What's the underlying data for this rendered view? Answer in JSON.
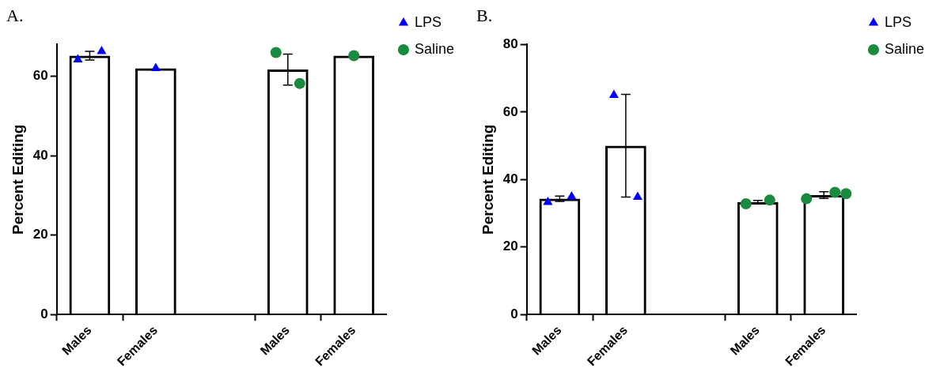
{
  "chart_data": [
    {
      "type": "bar",
      "title": "A.",
      "ylabel": "Percent Editing",
      "categories": [
        "Males",
        "Females",
        null,
        "Males",
        "Females"
      ],
      "ylim": [
        0,
        68
      ],
      "yticks": [
        0,
        20,
        40,
        60
      ],
      "grid": false,
      "legend": "top right",
      "series": [
        {
          "color": "#000000",
          "values": [
            65.2,
            62.0,
            null,
            61.7,
            65.2
          ],
          "errors": [
            1.1,
            null,
            null,
            3.9,
            null
          ]
        },
        {
          "type": "scatter",
          "name": "LPS",
          "color": "#0000ff",
          "marker": "triangle",
          "values": [
            64.2,
            62.0,
            null,
            null,
            null
          ]
        },
        {
          "type": "scatter",
          "color": "#0000ff",
          "marker": "triangle",
          "values": [
            66.3,
            null,
            null,
            null,
            null
          ]
        },
        {
          "type": "scatter",
          "name": "Saline",
          "color": "#1a8a3e",
          "marker": "circle",
          "values": [
            null,
            null,
            null,
            66.0,
            65.2
          ]
        },
        {
          "type": "scatter",
          "color": "#1a8a3e",
          "marker": "circle",
          "values": [
            null,
            null,
            null,
            58.2,
            null
          ]
        }
      ]
    },
    {
      "type": "bar",
      "title": "B.",
      "ylabel": "Percent Editing",
      "categories": [
        "Males",
        "Females",
        null,
        "Males",
        "Females"
      ],
      "ylim": [
        0,
        80
      ],
      "yticks": [
        0,
        20,
        40,
        60,
        80
      ],
      "grid": false,
      "legend": "top right",
      "series": [
        {
          "color": "#000000",
          "values": [
            34.3,
            50.0,
            null,
            33.3,
            35.4
          ],
          "errors": [
            0.8,
            15.2,
            null,
            0.5,
            1.0
          ]
        },
        {
          "type": "scatter",
          "name": "LPS",
          "color": "#0000ff",
          "marker": "triangle",
          "values": [
            33.3,
            65.0,
            null,
            null,
            null
          ]
        },
        {
          "type": "scatter",
          "color": "#0000ff",
          "marker": "triangle",
          "values": [
            34.9,
            34.8,
            null,
            null,
            null
          ]
        },
        {
          "type": "scatter",
          "name": "Saline",
          "color": "#1a8a3e",
          "marker": "circle",
          "values": [
            null,
            null,
            null,
            32.8,
            34.3
          ]
        },
        {
          "type": "scatter",
          "color": "#1a8a3e",
          "marker": "circle",
          "values": [
            null,
            null,
            null,
            33.9,
            36.2
          ]
        },
        {
          "type": "scatter",
          "color": "#1a8a3e",
          "marker": "circle",
          "values": [
            null,
            null,
            null,
            null,
            35.8
          ]
        }
      ]
    }
  ]
}
